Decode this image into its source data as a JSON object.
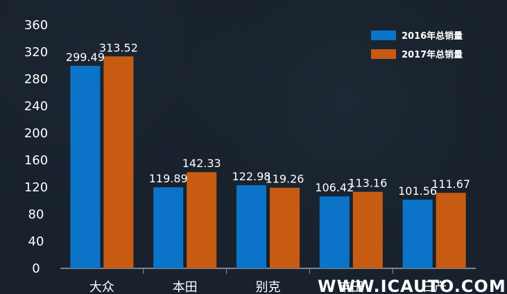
{
  "chart_data": {
    "type": "bar",
    "categories": [
      "大众",
      "本田",
      "别克",
      "丰田",
      "日产"
    ],
    "series": [
      {
        "name": "2016年总销量",
        "color": "#0b74c9",
        "values": [
          299.49,
          119.89,
          122.98,
          106.42,
          101.56
        ]
      },
      {
        "name": "2017年总销量",
        "color": "#c85b12",
        "values": [
          313.52,
          142.33,
          119.26,
          113.16,
          111.67
        ]
      }
    ],
    "yticks": [
      "0",
      "40",
      "80",
      "120",
      "160",
      "200",
      "240",
      "280",
      "320",
      "360"
    ],
    "ylim": [
      0,
      360
    ],
    "grid": false,
    "legend_placement": "top-right"
  },
  "watermark": "WWW.ICAUTO.COM.CN"
}
